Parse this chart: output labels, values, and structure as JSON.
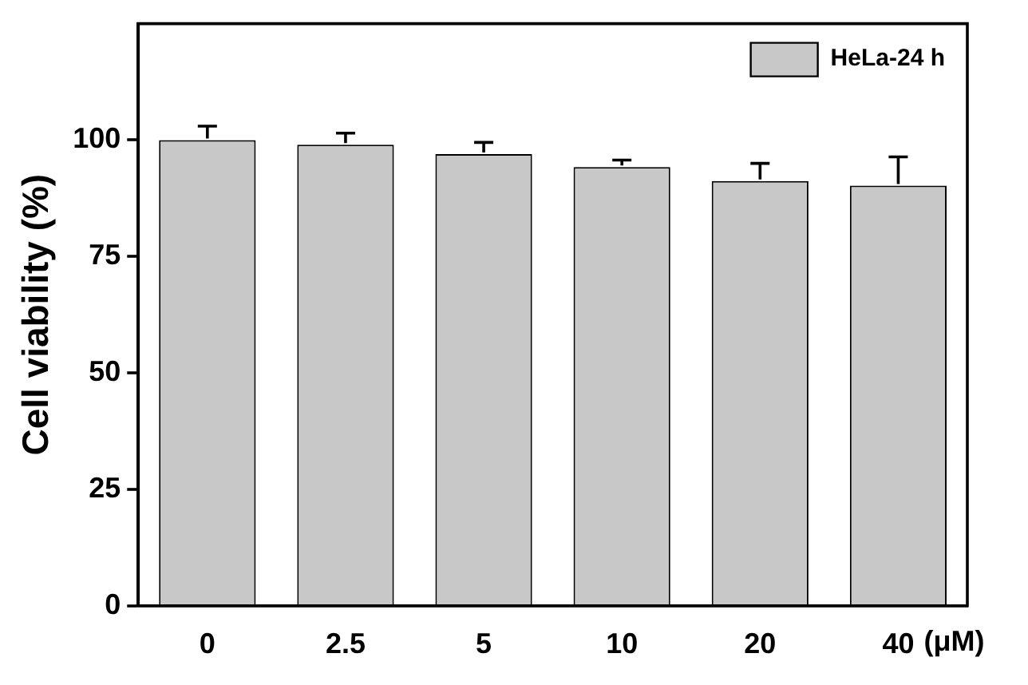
{
  "chart_data": {
    "type": "bar",
    "ylabel": "Cell viability (%)",
    "xlabel": "(μM)",
    "categories": [
      "0",
      "2.5",
      "5",
      "10",
      "20",
      "40"
    ],
    "series": [
      {
        "name": "HeLa-24 h",
        "color": "#c8c8c8",
        "values": [
          100,
          99,
          97,
          94.2,
          91.2,
          90.2
        ],
        "errors": [
          3,
          2.5,
          2.5,
          1.5,
          3.8,
          6.2
        ]
      }
    ],
    "ylim": [
      0,
      125
    ],
    "yticks": [
      0,
      25,
      50,
      75,
      100
    ],
    "grid": false,
    "legend": "top right"
  }
}
